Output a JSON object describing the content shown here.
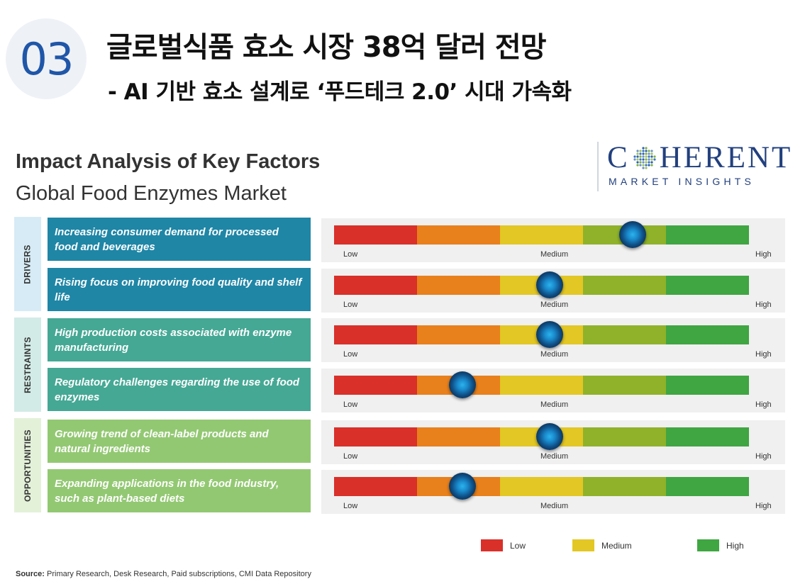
{
  "badge": "03",
  "headline": "글로벌식품 효소 시장 38억 달러 전망",
  "subhead": "- AI 기반 효소 설계로 ‘푸드테크 2.0’ 시대 가속화",
  "logo": {
    "part1": "C",
    "part2": "HERENT",
    "sub": "MARKET INSIGHTS"
  },
  "colors": {
    "low": "#d9302a",
    "low_medium": "#e8801c",
    "medium": "#e3c724",
    "medium_high": "#8fb22a",
    "high": "#3fa642",
    "drivers_box": "#1f86a6",
    "drivers_side": "#d6ebf5",
    "restraints_box": "#45a894",
    "restraints_side": "#d2ebe6",
    "opportunities_box": "#93c873",
    "opportunities_side": "#e3f1d9"
  },
  "chart_data": {
    "type": "table",
    "title": "Impact Analysis of Key Factors",
    "subtitle": "Global Food Enzymes Market",
    "scale": [
      "Low",
      "Medium",
      "High"
    ],
    "groups": [
      {
        "name": "DRIVERS",
        "factors": [
          {
            "text": "Increasing consumer demand for processed food and beverages",
            "impact": 0.72
          },
          {
            "text": "Rising focus on improving food quality and shelf life",
            "impact": 0.52
          }
        ]
      },
      {
        "name": "RESTRAINTS",
        "factors": [
          {
            "text": "High production costs associated with enzyme manufacturing",
            "impact": 0.52
          },
          {
            "text": "Regulatory challenges regarding the use of food enzymes",
            "impact": 0.31
          }
        ]
      },
      {
        "name": "OPPORTUNITIES",
        "factors": [
          {
            "text": "Growing trend of clean-label products and natural ingredients",
            "impact": 0.52
          },
          {
            "text": "Expanding applications in the food industry, such as plant-based diets",
            "impact": 0.31
          }
        ]
      }
    ],
    "legend": [
      {
        "label": "Low",
        "color": "#d9302a"
      },
      {
        "label": "Medium",
        "color": "#e3c724"
      },
      {
        "label": "High",
        "color": "#3fa642"
      }
    ]
  },
  "source": {
    "label": "Source:",
    "text": "Primary Research, Desk Research, Paid subscriptions, CMI Data Repository"
  }
}
